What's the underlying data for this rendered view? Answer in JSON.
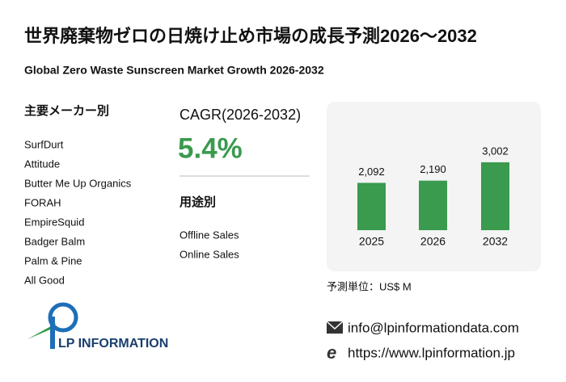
{
  "header": {
    "title": "世界廃棄物ゼロの日焼け止め市場の成長予測2026～2032",
    "subtitle": "Global Zero Waste Sunscreen Market Growth 2026-2032"
  },
  "manufacturers": {
    "heading": "主要メーカー別",
    "items": [
      "SurfDurt",
      "Attitude",
      "Butter Me Up Organics",
      "FORAH",
      "EmpireSquid",
      "Badger Balm",
      "Palm & Pine",
      "All Good"
    ]
  },
  "cagr": {
    "label": "CAGR(2026-2032)",
    "value": "5.4%"
  },
  "applications": {
    "heading": "用途別",
    "items": [
      "Offline Sales",
      "Online Sales"
    ]
  },
  "chart_data": {
    "type": "bar",
    "categories": [
      "2025",
      "2026",
      "2032"
    ],
    "values": [
      2092,
      2190,
      3002
    ],
    "value_labels": [
      "2,092",
      "2,190",
      "3,002"
    ],
    "color": "#3a9a4e"
  },
  "unit": "予測単位：US$ M",
  "contact": {
    "email": "info@lpinformationdata.com",
    "url": "https://www.lpinformation.jp"
  },
  "logo": {
    "text": "LP INFORMATION"
  }
}
